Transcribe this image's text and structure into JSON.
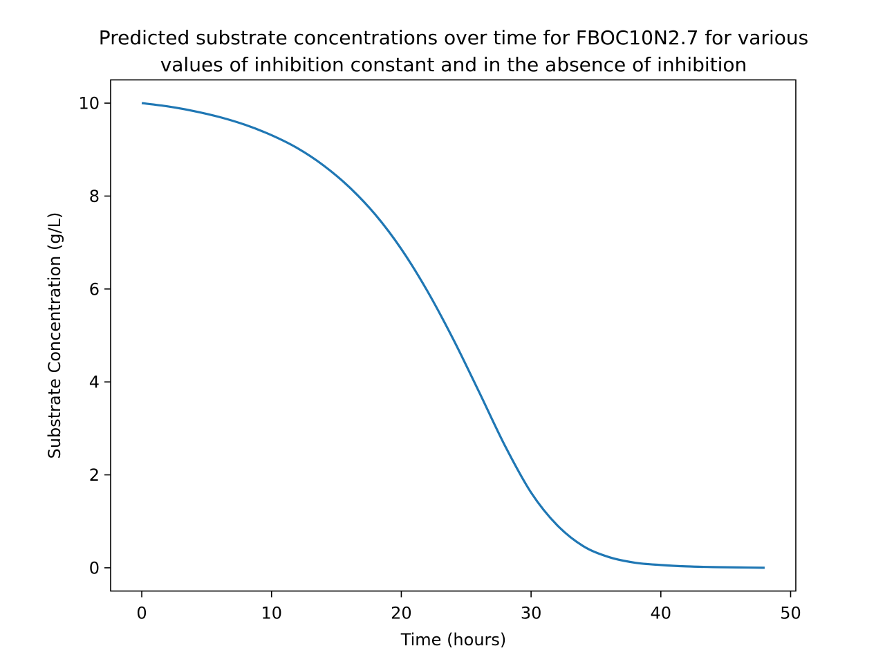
{
  "chart_data": {
    "type": "line",
    "title_lines": [
      "Predicted substrate concentrations over time for FBOC10N2.7 for various",
      "values of inhibition constant and in the absence of inhibition"
    ],
    "xlabel": "Time (hours)",
    "ylabel": "Substrate Concentration (g/L)",
    "xlim": [
      -2.4,
      50.4
    ],
    "ylim": [
      -0.5,
      10.5
    ],
    "xticks": [
      0,
      10,
      20,
      30,
      40,
      50
    ],
    "yticks": [
      0,
      2,
      4,
      6,
      8,
      10
    ],
    "grid": false,
    "legend": "none",
    "series": [
      {
        "color": "#1f77b4",
        "x": [
          0,
          2,
          4,
          6,
          8,
          10,
          12,
          14,
          16,
          18,
          20,
          22,
          24,
          26,
          28,
          30,
          32,
          34,
          36,
          38,
          40,
          42,
          44,
          46,
          48
        ],
        "y": [
          10.0,
          9.93,
          9.83,
          9.7,
          9.53,
          9.31,
          9.03,
          8.66,
          8.19,
          7.6,
          6.86,
          5.96,
          4.92,
          3.78,
          2.62,
          1.62,
          0.92,
          0.47,
          0.23,
          0.11,
          0.06,
          0.03,
          0.015,
          0.008,
          0.0
        ]
      }
    ]
  }
}
